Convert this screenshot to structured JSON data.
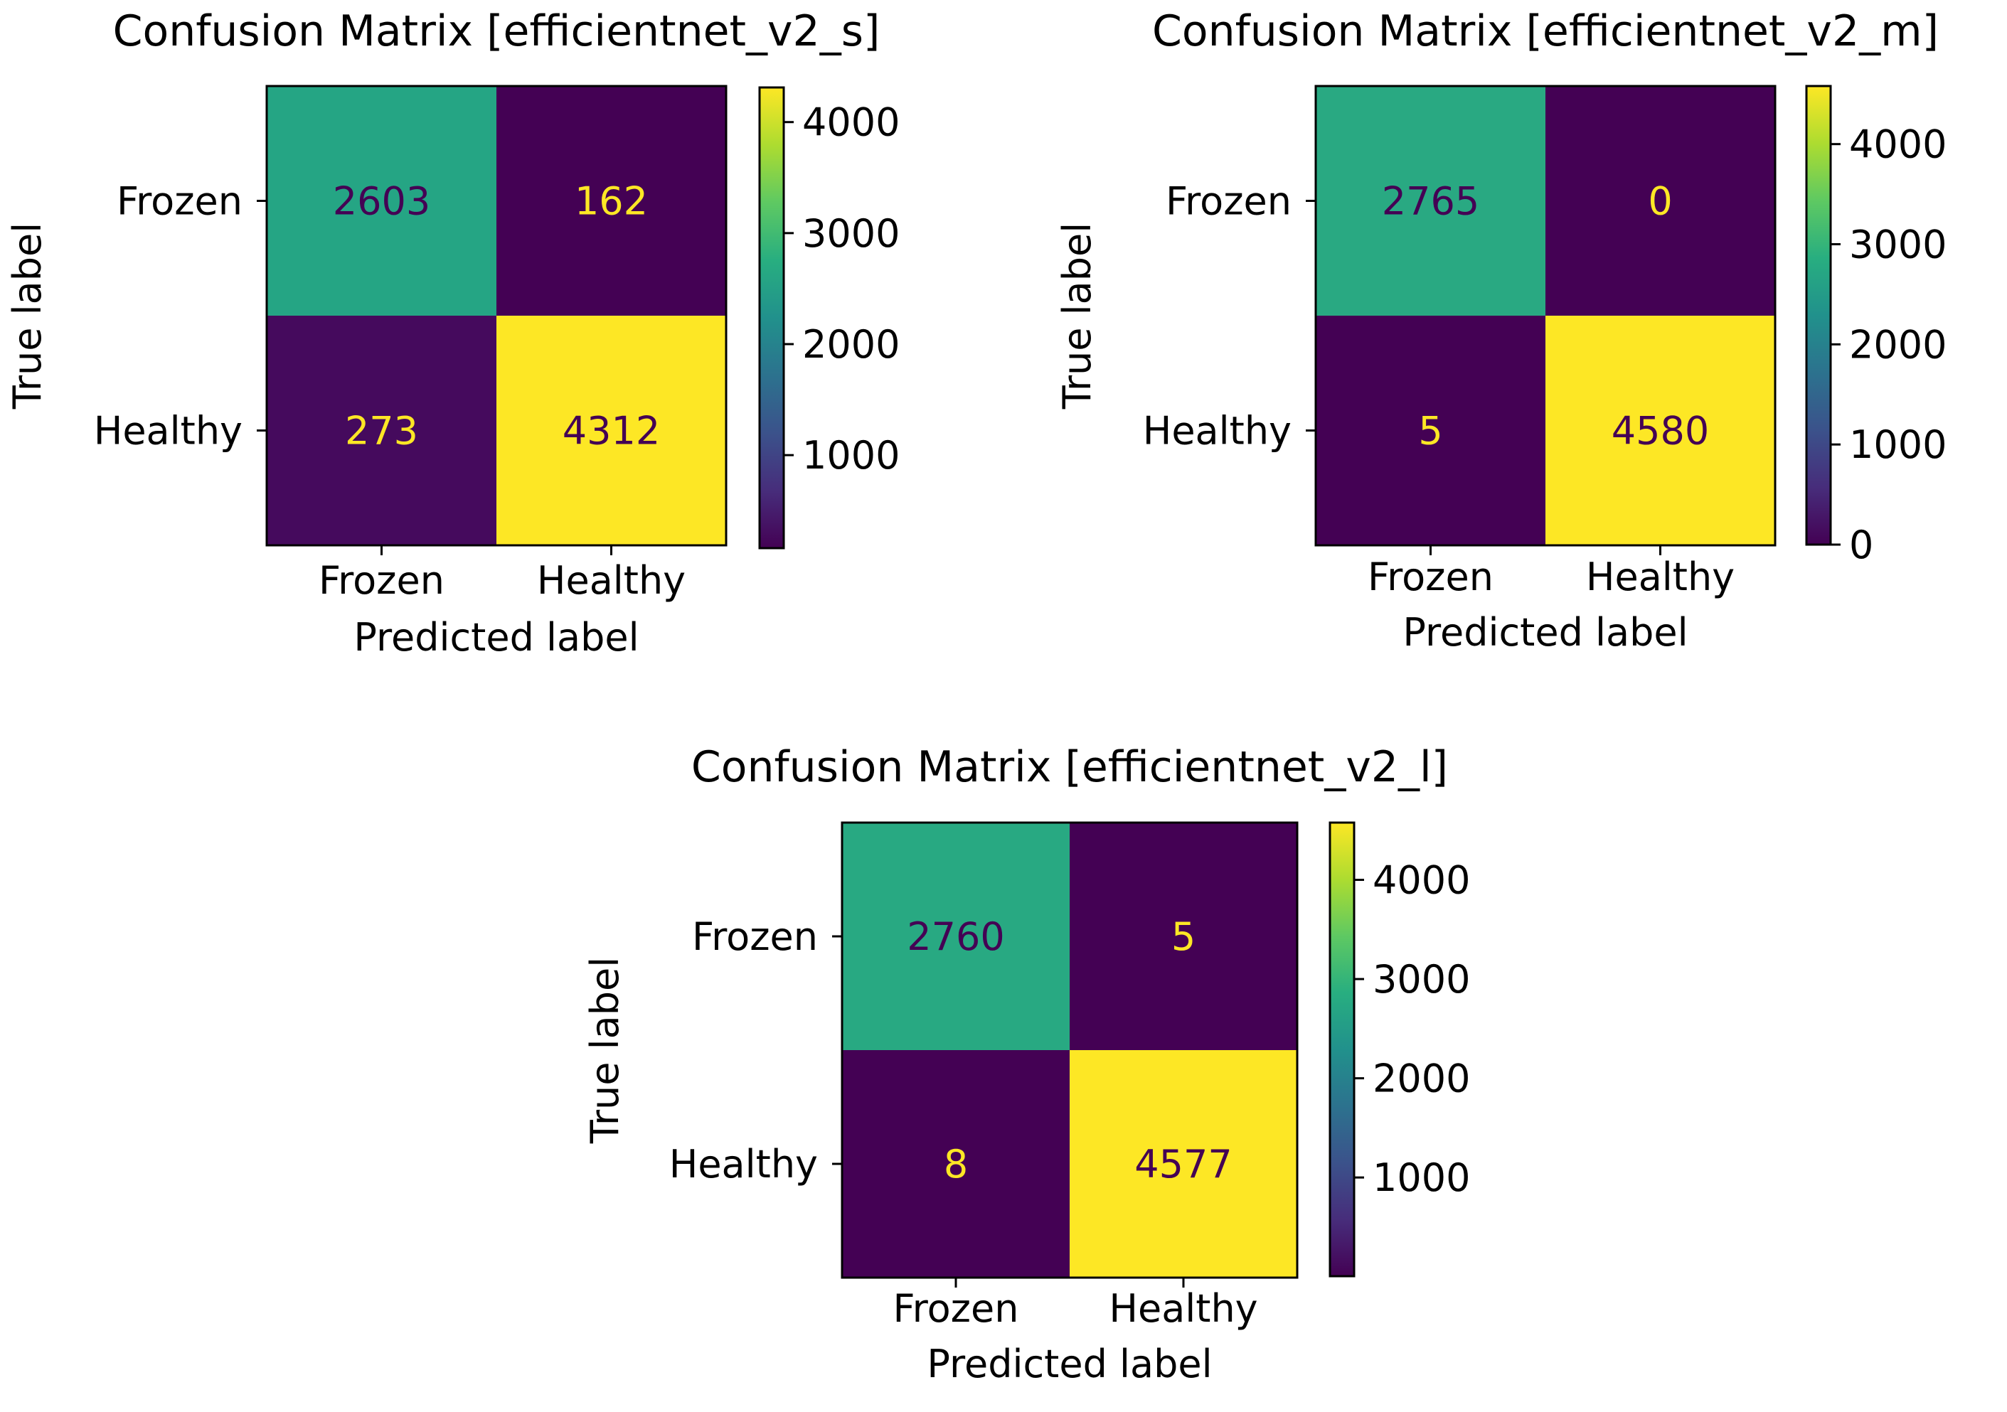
{
  "chart_data": [
    {
      "type": "heatmap",
      "title": "Confusion Matrix [efficientnet_v2_s]",
      "xlabel": "Predicted label",
      "ylabel": "True label",
      "rows": [
        "Frozen",
        "Healthy"
      ],
      "cols": [
        "Frozen",
        "Healthy"
      ],
      "values": [
        [
          2603,
          162
        ],
        [
          273,
          4312
        ]
      ],
      "colorbar": {
        "ticks": [
          "1000",
          "2000",
          "3000",
          "4000"
        ],
        "min": 162,
        "max": 4312
      }
    },
    {
      "type": "heatmap",
      "title": "Confusion Matrix [efficientnet_v2_m]",
      "xlabel": "Predicted label",
      "ylabel": "True label",
      "rows": [
        "Frozen",
        "Healthy"
      ],
      "cols": [
        "Frozen",
        "Healthy"
      ],
      "values": [
        [
          2765,
          0
        ],
        [
          5,
          4580
        ]
      ],
      "colorbar": {
        "ticks": [
          "0",
          "1000",
          "2000",
          "3000",
          "4000"
        ],
        "min": 0,
        "max": 4580
      }
    },
    {
      "type": "heatmap",
      "title": "Confusion Matrix [efficientnet_v2_l]",
      "xlabel": "Predicted label",
      "ylabel": "True label",
      "rows": [
        "Frozen",
        "Healthy"
      ],
      "cols": [
        "Frozen",
        "Healthy"
      ],
      "values": [
        [
          2760,
          5
        ],
        [
          8,
          4577
        ]
      ],
      "colorbar": {
        "ticks": [
          "1000",
          "2000",
          "3000",
          "4000"
        ],
        "min": 5,
        "max": 4577
      }
    }
  ],
  "colors": {
    "axis": "#000000",
    "text_light": "#fde725",
    "text_dark": "#440154"
  }
}
